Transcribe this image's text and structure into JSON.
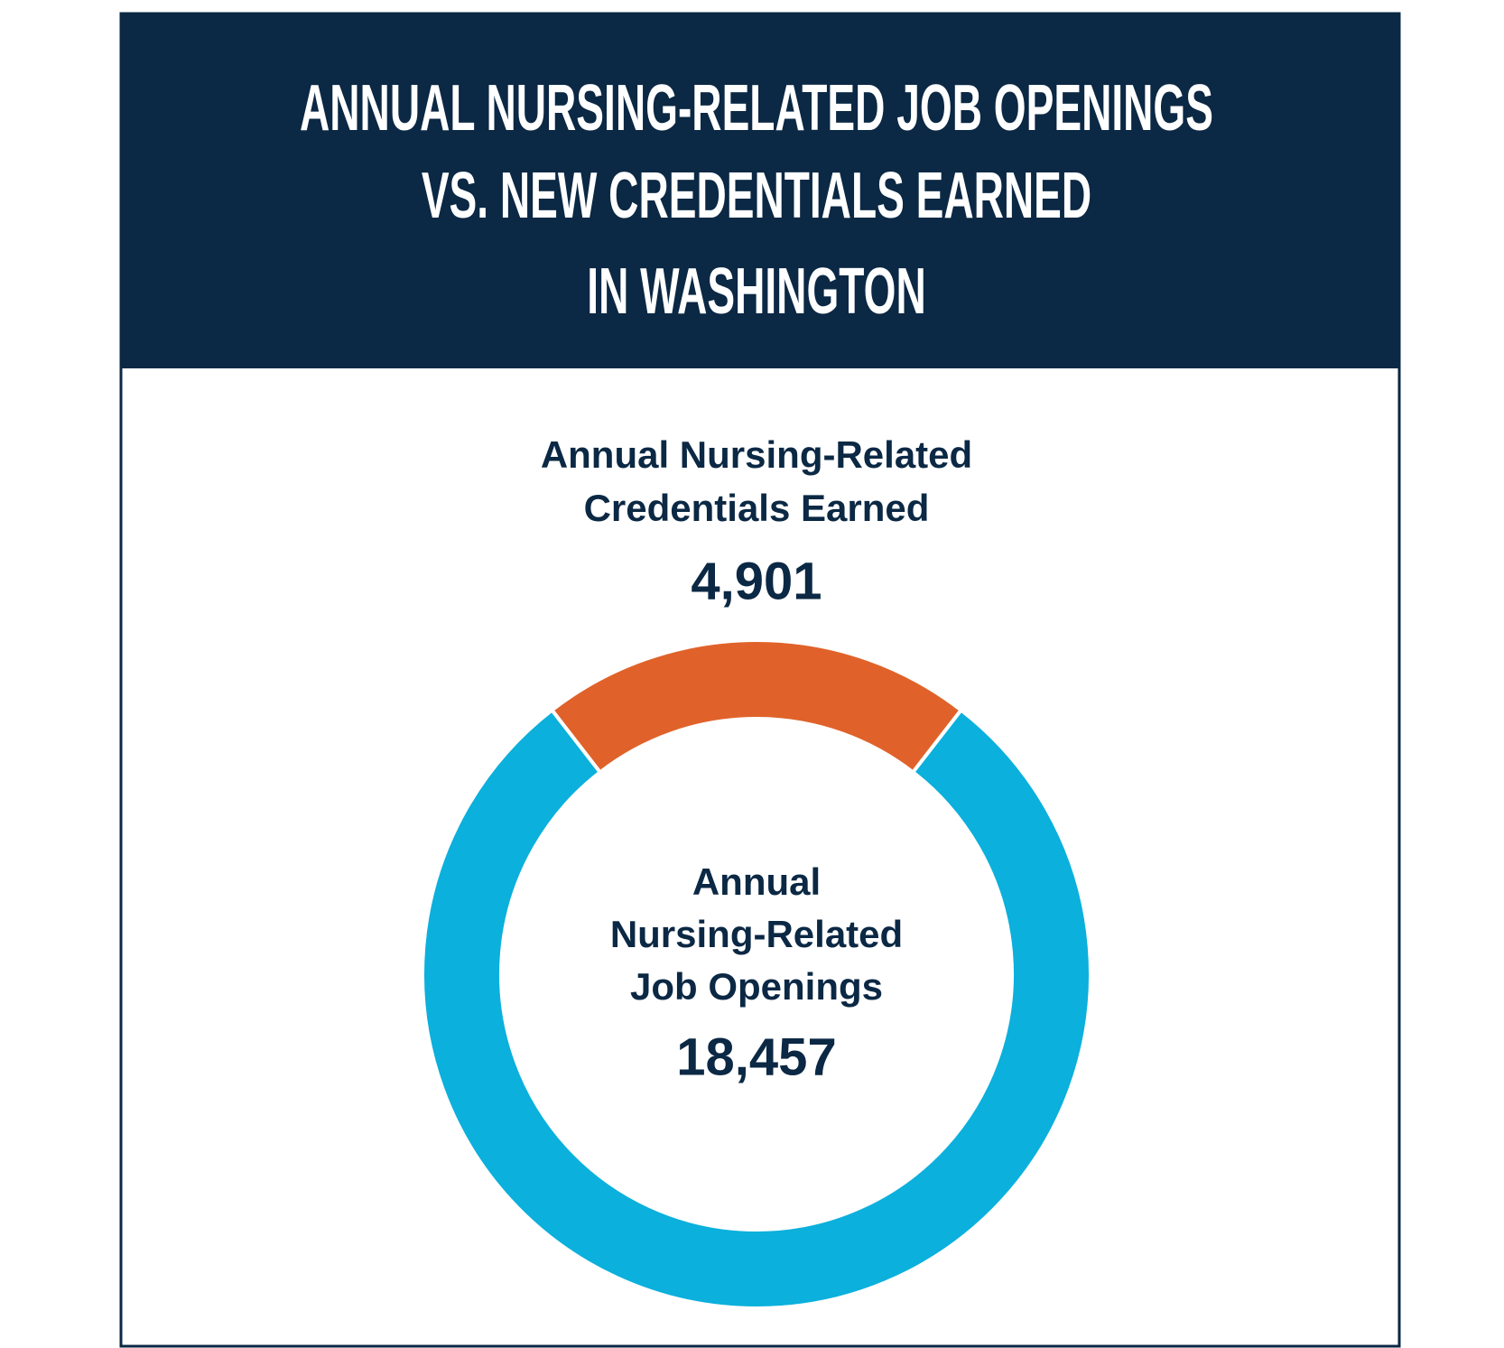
{
  "chart_data": {
    "type": "donut",
    "title": [
      "ANNUAL NURSING-RELATED JOB OPENINGS",
      "VS. NEW CREDENTIALS EARNED",
      "IN WASHINGTON"
    ],
    "categories": [
      [
        "Annual Nursing-Related",
        "Credentials Earned"
      ],
      [
        "Annual",
        "Nursing-Related",
        "Job Openings"
      ]
    ],
    "values": [
      4901,
      18457
    ],
    "value_labels": [
      "4,901",
      "18,457"
    ],
    "colors": [
      "#e0622a",
      "#0bb0dc"
    ]
  }
}
